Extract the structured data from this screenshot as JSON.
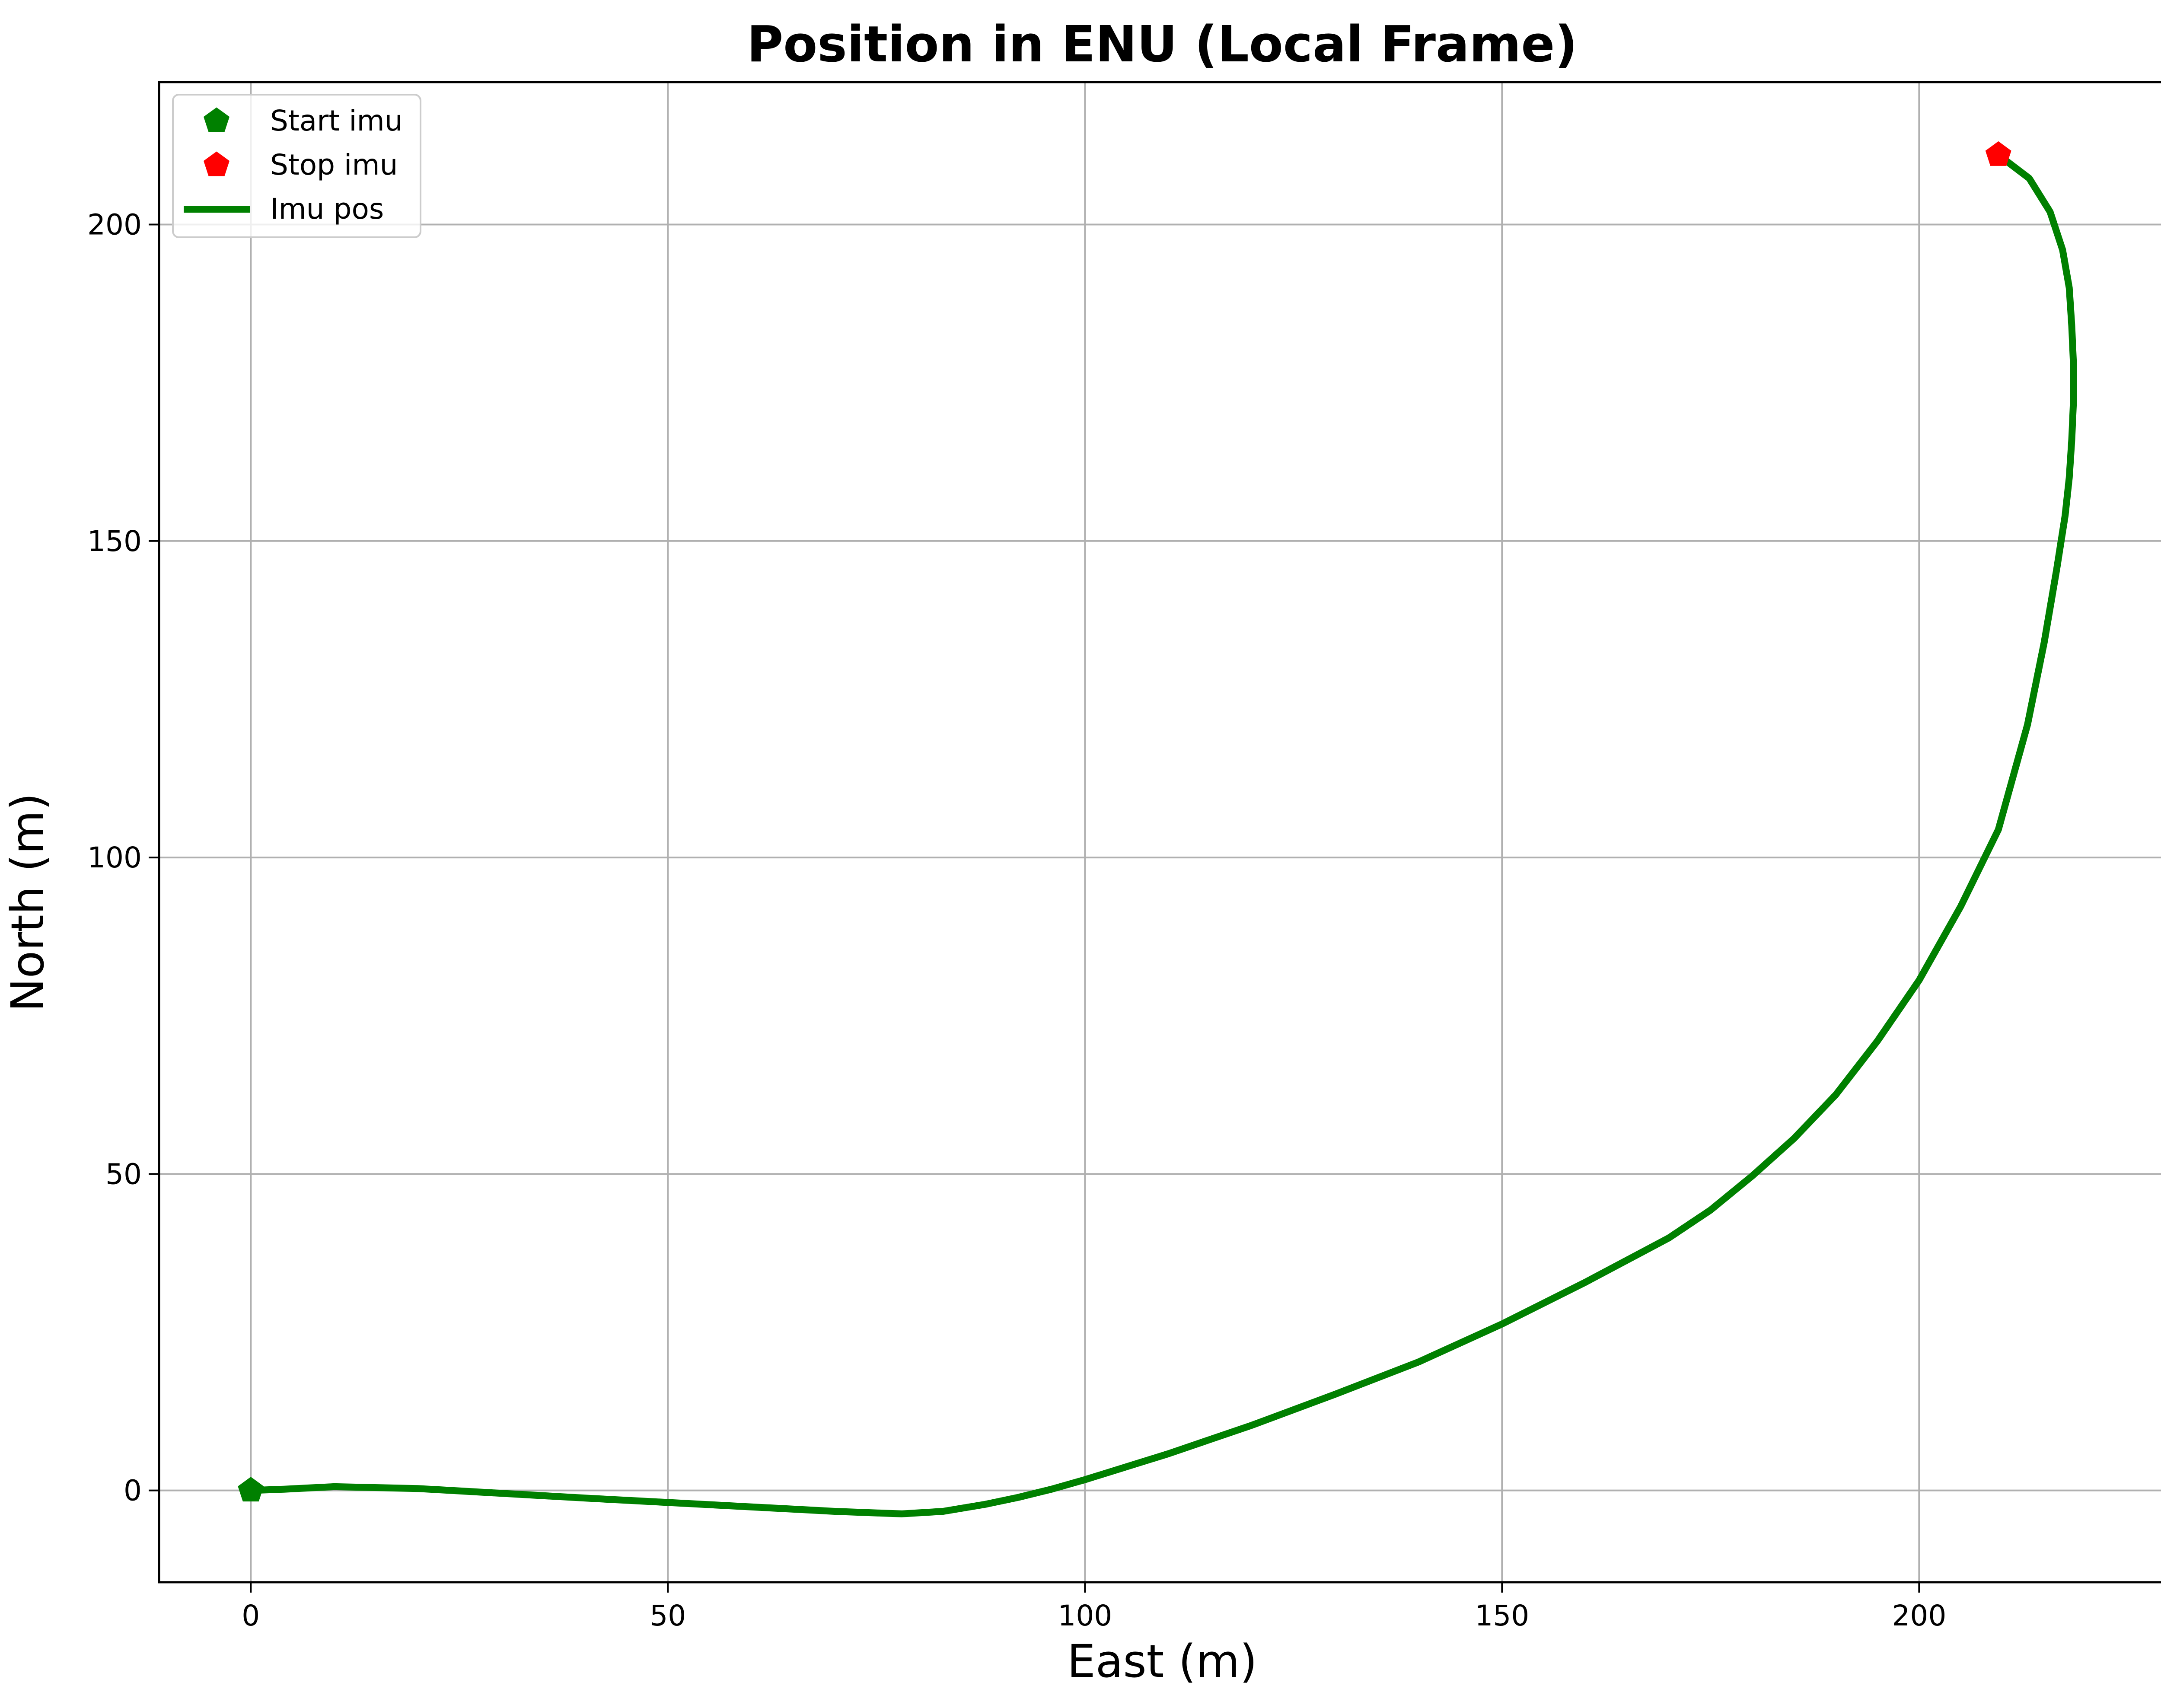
{
  "chart_data": {
    "type": "line",
    "title": "Position in ENU (Local Frame)",
    "xlabel": "East (m)",
    "ylabel": "North (m)",
    "xlim": [
      -11,
      230.5
    ],
    "ylim": [
      -14.5,
      222.5
    ],
    "xticks": [
      0,
      50,
      100,
      150,
      200
    ],
    "yticks": [
      0,
      50,
      100,
      150,
      200
    ],
    "xtick_labels": [
      "0",
      "50",
      "100",
      "150",
      "200"
    ],
    "ytick_labels": [
      "0",
      "50",
      "100",
      "150",
      "200"
    ],
    "grid": true,
    "legend_position": "top-left",
    "colors": {
      "path": "#008000",
      "start": "#008000",
      "stop": "#ff0000",
      "grid": "#b0b0b0"
    },
    "series": [
      {
        "name": "Imu pos",
        "x": [
          0,
          4,
          10,
          20,
          40,
          60,
          70,
          78,
          83,
          88,
          92,
          96,
          100,
          110,
          120,
          130,
          140,
          150,
          160,
          170,
          175,
          180,
          185,
          190,
          195,
          200,
          205,
          209.5,
          213,
          215,
          216.5,
          217.5,
          218,
          218.3,
          218.5,
          218.5,
          218.3,
          218,
          217.2,
          215.7,
          213.2,
          209.5
        ],
        "y": [
          0,
          0.2,
          0.6,
          0.3,
          -1.2,
          -2.6,
          -3.3,
          -3.7,
          -3.3,
          -2.2,
          -1.1,
          0.2,
          1.7,
          5.8,
          10.3,
          15.2,
          20.3,
          26.3,
          32.9,
          39.9,
          44.3,
          49.7,
          55.6,
          62.5,
          71,
          80.6,
          92.3,
          104.4,
          121,
          134,
          145.6,
          154,
          160,
          166,
          172,
          178,
          184,
          190,
          196,
          202,
          207.3,
          211
        ]
      }
    ],
    "markers": [
      {
        "name": "Start imu",
        "x": 0,
        "y": 0,
        "shape": "pentagon"
      },
      {
        "name": "Stop imu",
        "x": 209.5,
        "y": 211,
        "shape": "pentagon"
      }
    ]
  }
}
